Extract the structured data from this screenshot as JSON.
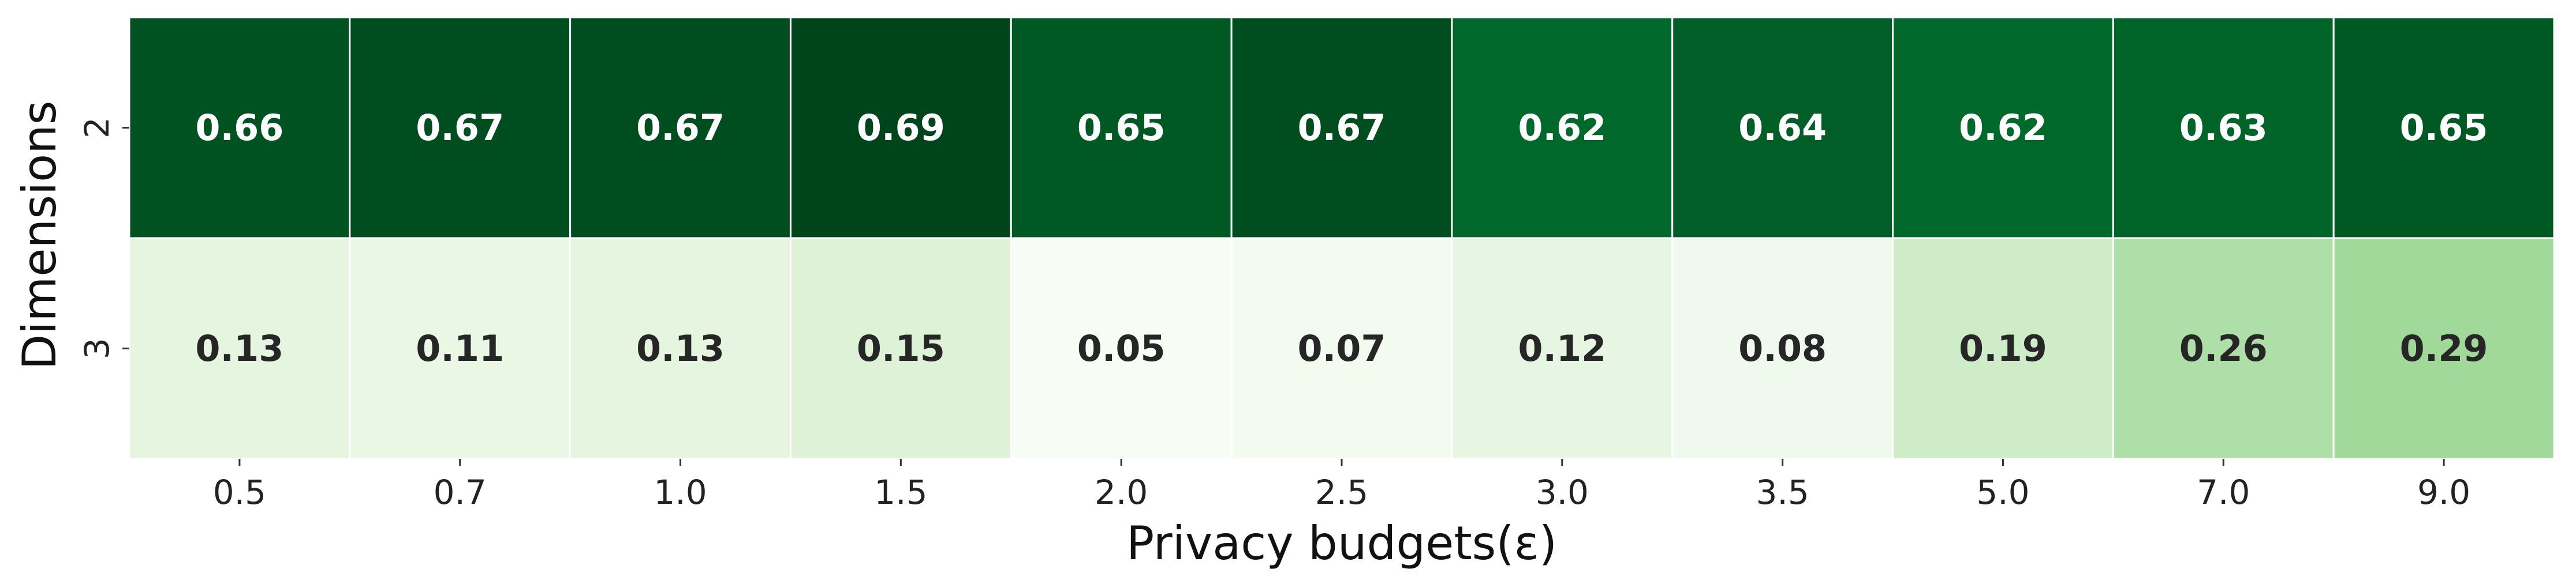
{
  "chart_data": {
    "type": "heatmap",
    "title": "",
    "xlabel": "Privacy budgets(ε)",
    "ylabel": "Dimensions",
    "x_categories": [
      "0.5",
      "0.7",
      "1.0",
      "1.5",
      "2.0",
      "2.5",
      "3.0",
      "3.5",
      "5.0",
      "7.0",
      "9.0"
    ],
    "y_categories": [
      "2",
      "3"
    ],
    "values": [
      [
        0.66,
        0.67,
        0.67,
        0.69,
        0.65,
        0.67,
        0.62,
        0.64,
        0.62,
        0.63,
        0.65
      ],
      [
        0.13,
        0.11,
        0.13,
        0.15,
        0.05,
        0.07,
        0.12,
        0.08,
        0.19,
        0.26,
        0.29
      ]
    ],
    "colormap": "Greens",
    "colorbar": false,
    "annotations": true,
    "grid_line_color": "#ffffff"
  }
}
